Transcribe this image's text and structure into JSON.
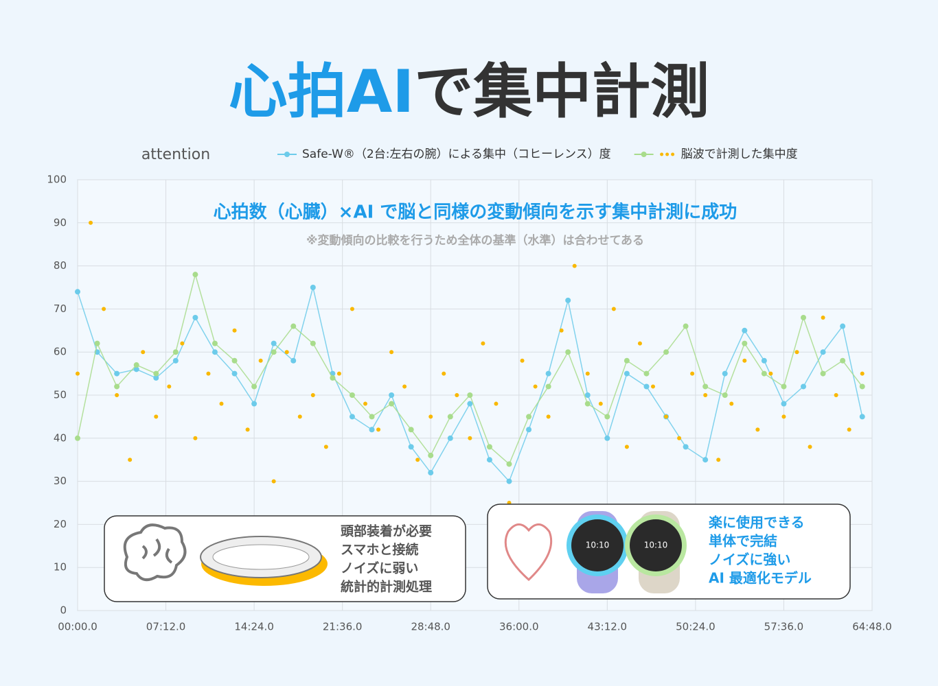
{
  "header": {
    "title_highlight": "心拍AI",
    "title_rest": "で集中計測"
  },
  "chart_data": {
    "type": "line",
    "ylabel": "attention",
    "headline": "心拍数（心臓）×AI で脳と同様の変動傾向を示す集中計測に成功",
    "note": "※変動傾向の比較を行うため全体の基準（水準）は合わせてある",
    "grid": true,
    "xlim": [
      0,
      3888
    ],
    "ylim": [
      0,
      100
    ],
    "yticks": [
      0,
      10,
      20,
      30,
      40,
      50,
      60,
      70,
      80,
      90,
      100
    ],
    "xticks": [
      {
        "value": 0,
        "label": "00:00.0"
      },
      {
        "value": 432,
        "label": "07:12.0"
      },
      {
        "value": 864,
        "label": "14:24.0"
      },
      {
        "value": 1296,
        "label": "21:36.0"
      },
      {
        "value": 1728,
        "label": "28:48.0"
      },
      {
        "value": 2160,
        "label": "36:00.0"
      },
      {
        "value": 2592,
        "label": "43:12.0"
      },
      {
        "value": 3024,
        "label": "50:24.0"
      },
      {
        "value": 3456,
        "label": "57:36.0"
      },
      {
        "value": 3888,
        "label": "64:48.0"
      }
    ],
    "x": [
      0,
      96,
      192,
      288,
      384,
      480,
      576,
      672,
      768,
      864,
      960,
      1056,
      1152,
      1248,
      1344,
      1440,
      1536,
      1632,
      1728,
      1824,
      1920,
      2016,
      2112,
      2208,
      2304,
      2400,
      2496,
      2592,
      2688,
      2784,
      2880,
      2976,
      3072,
      3168,
      3264,
      3360,
      3456,
      3552,
      3648,
      3744,
      3840
    ],
    "series": [
      {
        "name": "Safe-W®（2台:左右の腕）による集中（コヒーレンス）度",
        "color": "#6ccbea",
        "style": "line",
        "values": [
          74,
          60,
          55,
          56,
          54,
          58,
          68,
          60,
          55,
          48,
          62,
          58,
          75,
          55,
          45,
          42,
          50,
          38,
          32,
          40,
          48,
          35,
          30,
          42,
          55,
          72,
          50,
          40,
          55,
          52,
          45,
          38,
          35,
          55,
          65,
          58,
          48,
          52,
          60,
          66,
          45
        ]
      },
      {
        "color": "#a8dc8c",
        "style": "line",
        "values": [
          40,
          62,
          52,
          57,
          55,
          60,
          78,
          62,
          58,
          52,
          60,
          66,
          62,
          54,
          50,
          45,
          48,
          42,
          36,
          45,
          50,
          38,
          34,
          45,
          52,
          60,
          48,
          45,
          58,
          55,
          60,
          66,
          52,
          50,
          62,
          55,
          52,
          68,
          55,
          58,
          52
        ]
      },
      {
        "name": "脳波で計測した集中度",
        "color": "#f9b800",
        "style": "dots",
        "x": [
          0,
          64,
          128,
          192,
          256,
          320,
          384,
          448,
          512,
          576,
          640,
          704,
          768,
          832,
          896,
          960,
          1024,
          1088,
          1152,
          1216,
          1280,
          1344,
          1408,
          1472,
          1536,
          1600,
          1664,
          1728,
          1792,
          1856,
          1920,
          1984,
          2048,
          2112,
          2176,
          2240,
          2304,
          2368,
          2432,
          2496,
          2560,
          2624,
          2688,
          2752,
          2816,
          2880,
          2944,
          3008,
          3072,
          3136,
          3200,
          3264,
          3328,
          3392,
          3456,
          3520,
          3584,
          3648,
          3712,
          3776,
          3840
        ],
        "values": [
          55,
          90,
          70,
          50,
          35,
          60,
          45,
          52,
          62,
          40,
          55,
          48,
          65,
          42,
          58,
          30,
          60,
          45,
          50,
          38,
          55,
          70,
          48,
          42,
          60,
          52,
          35,
          45,
          55,
          50,
          40,
          62,
          48,
          25,
          58,
          52,
          45,
          65,
          80,
          55,
          48,
          70,
          38,
          62,
          52,
          45,
          40,
          55,
          50,
          35,
          48,
          58,
          42,
          55,
          45,
          60,
          38,
          68,
          50,
          42,
          55
        ]
      }
    ]
  },
  "cards": [
    {
      "lines": [
        "頭部装着が必要",
        "スマホと接続",
        "ノイズに弱い",
        "統計的計測処理"
      ]
    },
    {
      "lines": [
        "楽に使用できる",
        "単体で完結",
        "ノイズに強い",
        "AI 最適化モデル"
      ]
    }
  ]
}
